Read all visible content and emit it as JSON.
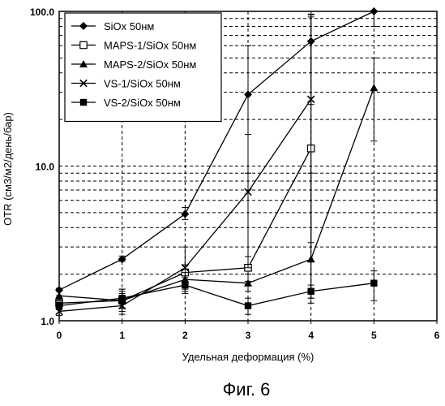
{
  "figure_caption": "Фиг. 6",
  "chart_data": {
    "type": "line",
    "xlabel": "Удельная деформация (%)",
    "ylabel": "OTR (см3/м2/день/бар)",
    "xlim": [
      0,
      6
    ],
    "ylim": [
      1.0,
      100.0
    ],
    "y_scale": "log",
    "grid": "dashed",
    "legend_position": "top-left",
    "x_ticks": [
      "0",
      "1",
      "2",
      "3",
      "4",
      "5",
      "6"
    ],
    "y_ticks": [
      "1.0",
      "10.0",
      "100.0"
    ],
    "series": [
      {
        "name": "SiOx 50нм",
        "marker": "diamond",
        "x": [
          0,
          1,
          2,
          3,
          4,
          5
        ],
        "y": [
          1.58,
          2.5,
          4.9,
          29,
          64,
          100
        ],
        "err_low": [
          1.55,
          2.42,
          4.5,
          9,
          25,
          80
        ],
        "err_high": [
          1.62,
          2.62,
          5.4,
          60,
          96,
          100
        ]
      },
      {
        "name": "MAPS-1/SiOx 50нм",
        "marker": "square-open",
        "x": [
          0,
          1,
          2,
          3,
          4
        ],
        "y": [
          1.3,
          1.35,
          2.05,
          2.2,
          13
        ],
        "err_low": [
          1.2,
          1.2,
          1.8,
          1.8,
          1.4
        ],
        "err_high": [
          1.45,
          1.55,
          2.3,
          2.6,
          95
        ]
      },
      {
        "name": "MAPS-2/SiOx 50нм",
        "marker": "triangle",
        "x": [
          0,
          1,
          2,
          3,
          4,
          5
        ],
        "y": [
          1.45,
          1.35,
          1.85,
          1.75,
          2.5,
          32
        ],
        "err_low": [
          1.35,
          1.2,
          1.6,
          1.55,
          1.3,
          14.5
        ],
        "err_high": [
          1.55,
          1.5,
          2.05,
          2.0,
          9,
          50
        ]
      },
      {
        "name": "VS-1/SiOx 50нм",
        "marker": "x",
        "x": [
          0,
          1,
          2,
          3,
          4
        ],
        "y": [
          1.15,
          1.25,
          2.2,
          6.8,
          27
        ],
        "err_low": [
          1.08,
          1.1,
          1.55,
          2.2,
          3.2
        ],
        "err_high": [
          1.22,
          1.6,
          3.0,
          16,
          92
        ]
      },
      {
        "name": "VS-2/SiOx 50нм",
        "marker": "square-filled",
        "x": [
          0,
          1,
          2,
          3,
          4,
          5
        ],
        "y": [
          1.25,
          1.4,
          1.7,
          1.25,
          1.55,
          1.75
        ],
        "err_low": [
          1.18,
          1.15,
          1.5,
          1.1,
          1.4,
          1.35
        ],
        "err_high": [
          1.32,
          1.6,
          1.9,
          1.4,
          1.7,
          2.1
        ]
      }
    ]
  }
}
